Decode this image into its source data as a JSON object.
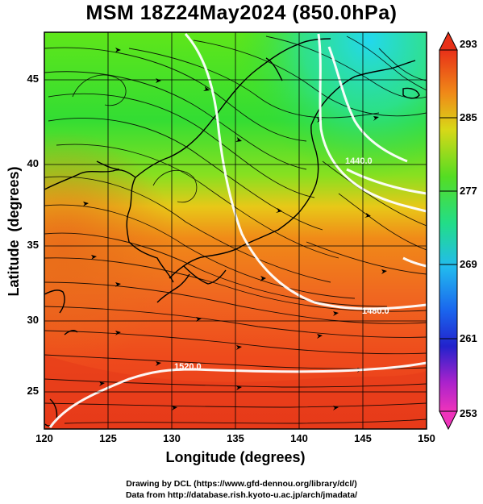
{
  "title": "MSM 18Z24May2024 (850.0hPa)",
  "axes": {
    "x_label": "Longitude (degrees)",
    "y_label": "Latitude  (degrees)",
    "x_ticks": [
      "120",
      "125",
      "130",
      "135",
      "140",
      "145",
      "150"
    ],
    "y_ticks": [
      "45",
      "40",
      "35",
      "30",
      "25"
    ]
  },
  "colorbar": {
    "ticks": [
      "293",
      "285",
      "277",
      "269",
      "261",
      "253"
    ]
  },
  "contour_labels": [
    "1520.0",
    "1480.0",
    "1440.0"
  ],
  "credits": {
    "line1": "Drawing by DCL (https://www.gfd-dennou.org/library/dcl/)",
    "line2": "Data from http://database.rish.kyoto-u.ac.jp/arch/jmadata/"
  },
  "colors": {
    "warm": "#e8401e",
    "green": "#44dd22",
    "cyan": "#22dddd",
    "frame": "#000000"
  }
}
